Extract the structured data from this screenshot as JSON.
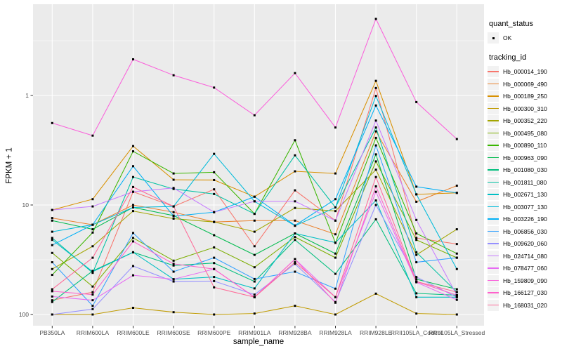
{
  "legend": {
    "quant_status": {
      "title": "quant_status",
      "ok_label": "OK",
      "symbol": "black-point"
    },
    "tracking_id": {
      "title": "tracking_id"
    }
  },
  "axes": {
    "y_title": "FPKM + 1",
    "x_title": "sample_name",
    "y_scale": "log10",
    "y_tick_labels": [
      "100",
      "10",
      "1"
    ],
    "y_tick_values": [
      100,
      10,
      1
    ],
    "y_minor_values": [
      3.1623,
      31.623,
      316.23
    ]
  },
  "style": {
    "panel_bg": "#EBEBEB",
    "grid_color": "#FFFFFF",
    "tick_color": "#333333",
    "tick_text_color": "#4D4D4D",
    "marker_color": "#000000",
    "legend_key_bg": "#F2F2F2"
  },
  "chart_data": {
    "type": "line",
    "title": "",
    "xlabel": "sample_name",
    "ylabel": "FPKM + 1",
    "y_scale": "log10",
    "ylim": [
      0.78,
      680
    ],
    "grid": true,
    "legend_position": "right",
    "marker": "small black point (quant_status OK)",
    "categories": [
      "PB350LA",
      "RRIM600LA",
      "RRIM600LE",
      "RRIM600SE",
      "RRIM600PE",
      "RRIM901LA",
      "RRIM928BA",
      "RRIM928LA",
      "RRIM928LE",
      "RRII105LA_Control",
      "RRII105LA_Stressed"
    ],
    "series": [
      {
        "name": "Hb_000014_190",
        "color": "#F8766D",
        "values": [
          1.35,
          1.6,
          13.2,
          9.7,
          13.9,
          4.2,
          13.6,
          7.2,
          117,
          5.0,
          4.4
        ]
      },
      {
        "name": "Hb_000069_490",
        "color": "#EA8331",
        "values": [
          7.6,
          6.6,
          10.0,
          8.6,
          7.0,
          7.2,
          7.2,
          5.4,
          47,
          10.7,
          15.0
        ]
      },
      {
        "name": "Hb_000189_250",
        "color": "#D89000",
        "values": [
          9.0,
          11.3,
          34.5,
          17.0,
          16.9,
          11.9,
          20.3,
          19.4,
          136,
          12.5,
          12.9
        ]
      },
      {
        "name": "Hb_000300_310",
        "color": "#C09B00",
        "values": [
          1.0,
          1.0,
          1.15,
          1.05,
          1.0,
          1.02,
          1.2,
          1.0,
          1.55,
          1.02,
          1.0
        ]
      },
      {
        "name": "Hb_000352_220",
        "color": "#A3A500",
        "values": [
          2.6,
          4.2,
          8.8,
          7.5,
          7.0,
          5.7,
          9.4,
          8.8,
          21,
          3.5,
          6.0
        ]
      },
      {
        "name": "Hb_000495_080",
        "color": "#7CAE00",
        "values": [
          3.65,
          1.8,
          5.0,
          3.1,
          4.1,
          2.7,
          5.1,
          3.3,
          25,
          4.8,
          3.3
        ]
      },
      {
        "name": "Hb_000890_110",
        "color": "#39B600",
        "values": [
          2.3,
          5.6,
          30.9,
          19.4,
          19.9,
          8.3,
          39,
          4.5,
          41,
          5.5,
          3.6
        ]
      },
      {
        "name": "Hb_000963_090",
        "color": "#00BB4E",
        "values": [
          7.2,
          6.0,
          9.5,
          8.0,
          5.3,
          3.5,
          5.5,
          3.6,
          29,
          2.1,
          1.7
        ]
      },
      {
        "name": "Hb_001080_030",
        "color": "#00BF7D",
        "values": [
          1.3,
          2.5,
          3.7,
          2.8,
          2.95,
          2.0,
          4.8,
          2.35,
          7.4,
          1.56,
          1.5
        ]
      },
      {
        "name": "Hb_001811_080",
        "color": "#00C1A3",
        "values": [
          5.0,
          2.4,
          18,
          14,
          12.6,
          8.3,
          28.4,
          9.5,
          51,
          3.7,
          1.6
        ]
      },
      {
        "name": "Hb_002671_130",
        "color": "#00BFC4",
        "values": [
          4.8,
          2.46,
          3.7,
          2.1,
          2.2,
          1.73,
          5.5,
          4.54,
          11,
          1.44,
          1.44
        ]
      },
      {
        "name": "Hb_003077_130",
        "color": "#00BBDA",
        "values": [
          5.7,
          6.6,
          9.5,
          9.7,
          29.3,
          10.8,
          6.45,
          9.5,
          99,
          12.5,
          2.6
        ]
      },
      {
        "name": "Hb_003226_190",
        "color": "#00B0F6",
        "values": [
          4.3,
          6.6,
          22.6,
          7.9,
          8.6,
          11.9,
          6.5,
          11.3,
          81,
          14.7,
          12.9
        ]
      },
      {
        "name": "Hb_006856_030",
        "color": "#35A2FF",
        "values": [
          3.0,
          1.2,
          5.55,
          2.46,
          3.3,
          2.11,
          2.46,
          1.72,
          35,
          3.0,
          3.3
        ]
      },
      {
        "name": "Hb_009620_060",
        "color": "#9590FF",
        "values": [
          1.0,
          1.12,
          2.77,
          2.0,
          2.02,
          1.52,
          2.9,
          1.3,
          10,
          2.2,
          1.44
        ]
      },
      {
        "name": "Hb_024714_080",
        "color": "#C77CFF",
        "values": [
          9.0,
          9.7,
          13.2,
          14.3,
          8.6,
          10.8,
          10.8,
          7.2,
          59,
          7.3,
          1.5
        ]
      },
      {
        "name": "Hb_078477_060",
        "color": "#E76BF3",
        "values": [
          1.46,
          1.35,
          2.28,
          2.1,
          2.6,
          1.44,
          3.2,
          1.44,
          13.2,
          1.97,
          1.36
        ]
      },
      {
        "name": "Hb_159809_090",
        "color": "#FA62DB",
        "values": [
          56,
          43,
          214,
          153,
          118,
          66,
          160,
          51,
          500,
          87,
          40
        ]
      },
      {
        "name": "Hb_166127_030",
        "color": "#FF61CC",
        "values": [
          1.63,
          1.52,
          4.65,
          2.9,
          2.6,
          1.44,
          3.2,
          1.28,
          14.8,
          2.0,
          1.5
        ]
      },
      {
        "name": "Hb_168031_020",
        "color": "#FF6A98",
        "values": [
          1.7,
          3.3,
          14.6,
          9.7,
          1.77,
          1.44,
          3.0,
          1.44,
          18,
          2.0,
          1.6
        ]
      }
    ]
  }
}
